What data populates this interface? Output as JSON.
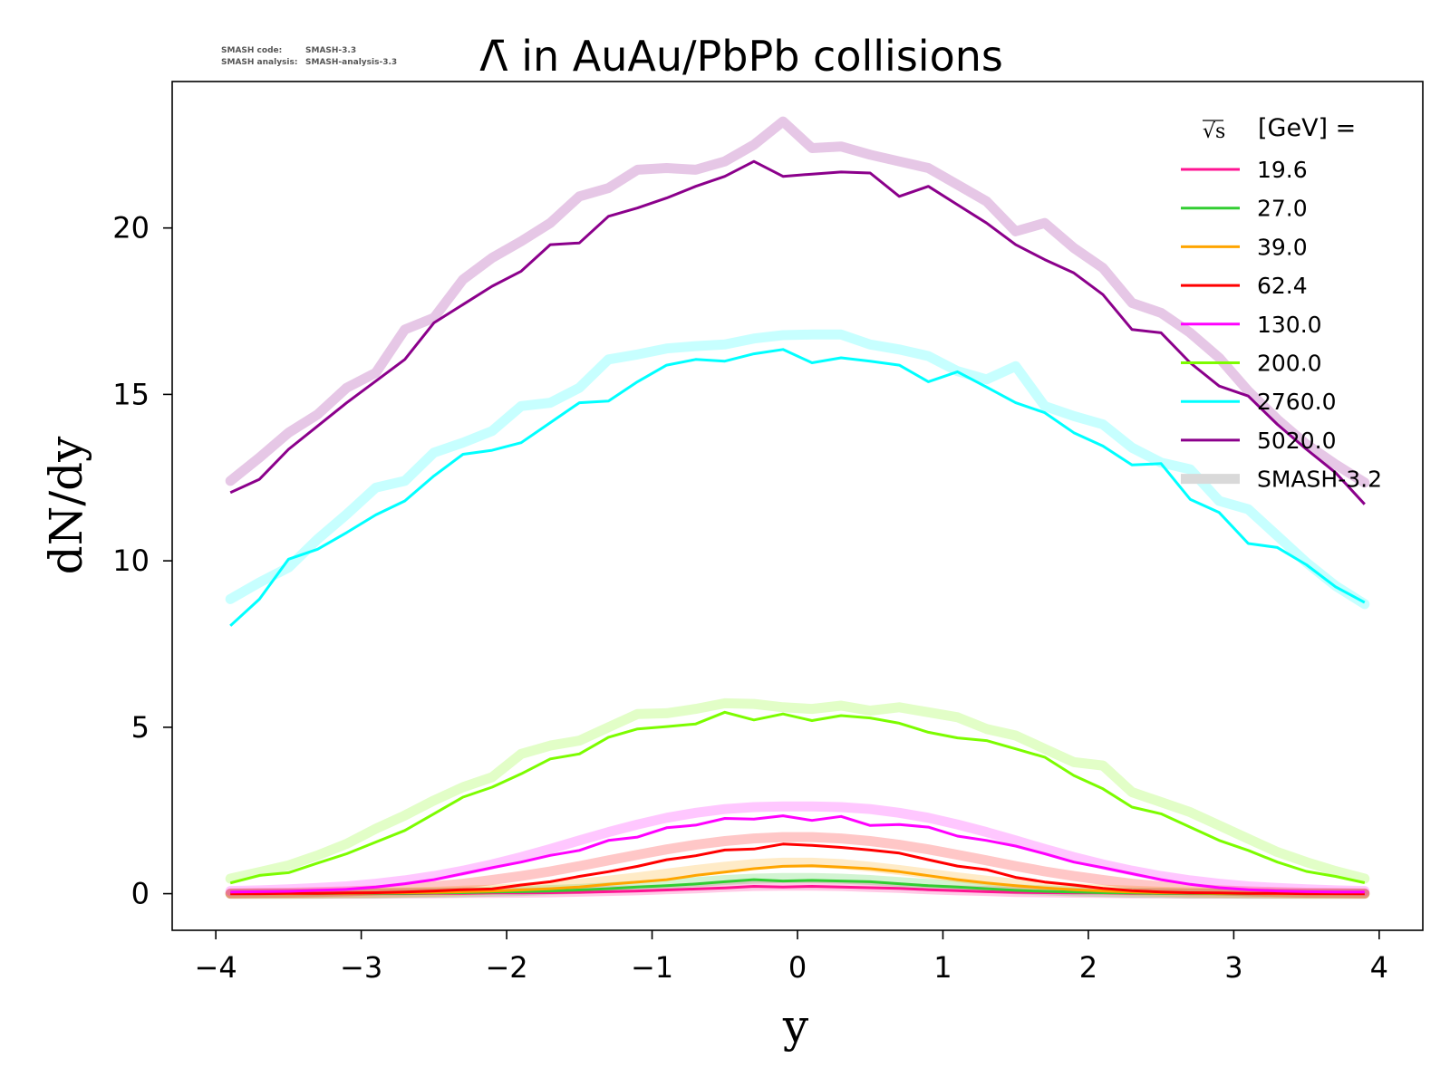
{
  "header": {
    "smash_code_label": "SMASH code:",
    "smash_code_value": "SMASH-3.3",
    "smash_analysis_label": "SMASH analysis:",
    "smash_analysis_value": "SMASH-analysis-3.3"
  },
  "chart_data": {
    "type": "line",
    "title": "Λ̄ in AuAu/PbPb collisions",
    "xlabel": "y",
    "ylabel": "dN/dy",
    "xlim": [
      -4.3,
      4.3
    ],
    "ylim": [
      -1.1,
      24.4
    ],
    "xticks": [
      -4,
      -3,
      -2,
      -1,
      0,
      1,
      2,
      3,
      4
    ],
    "xtick_labels": [
      "−4",
      "−3",
      "−2",
      "−1",
      "0",
      "1",
      "2",
      "3",
      "4"
    ],
    "yticks": [
      0,
      5,
      10,
      15,
      20
    ],
    "ytick_labels": [
      "0",
      "5",
      "10",
      "15",
      "20"
    ],
    "grid": false,
    "legend": {
      "position": "top-right",
      "title_symbol": "√s",
      "title_text": "[GeV] =",
      "reference_label": "SMASH-3.2",
      "reference_color": "#d9d9d9"
    },
    "x": [
      -3.9,
      -3.7,
      -3.5,
      -3.3,
      -3.1,
      -2.9,
      -2.7,
      -2.5,
      -2.3,
      -2.1,
      -1.9,
      -1.7,
      -1.5,
      -1.3,
      -1.1,
      -0.9,
      -0.7,
      -0.5,
      -0.3,
      -0.1,
      0.1,
      0.3,
      0.5,
      0.7,
      0.9,
      1.1,
      1.3,
      1.5,
      1.7,
      1.9,
      2.1,
      2.3,
      2.5,
      2.7,
      2.9,
      3.1,
      3.3,
      3.5,
      3.7,
      3.9
    ],
    "series": [
      {
        "name": "19.6",
        "color": "#ff1493",
        "values": [
          0.0,
          0.0,
          0.0,
          0.0,
          0.0,
          0.0,
          0.0,
          0.01,
          0.01,
          0.02,
          0.02,
          0.03,
          0.04,
          0.06,
          0.08,
          0.11,
          0.14,
          0.17,
          0.22,
          0.2,
          0.22,
          0.2,
          0.18,
          0.16,
          0.12,
          0.09,
          0.06,
          0.04,
          0.03,
          0.02,
          0.02,
          0.01,
          0.01,
          0.0,
          0.0,
          0.0,
          0.0,
          0.0,
          0.0,
          0.0
        ],
        "reference": [
          0.0,
          0.0,
          0.0,
          0.0,
          0.0,
          0.0,
          0.01,
          0.01,
          0.02,
          0.02,
          0.03,
          0.04,
          0.06,
          0.08,
          0.1,
          0.13,
          0.16,
          0.2,
          0.23,
          0.24,
          0.24,
          0.23,
          0.2,
          0.17,
          0.13,
          0.1,
          0.08,
          0.05,
          0.04,
          0.03,
          0.02,
          0.01,
          0.01,
          0.0,
          0.0,
          0.0,
          0.0,
          0.0,
          0.0,
          0.0
        ]
      },
      {
        "name": "27.0",
        "color": "#32cd32",
        "values": [
          0.0,
          0.0,
          0.0,
          0.0,
          0.01,
          0.01,
          0.01,
          0.02,
          0.03,
          0.05,
          0.06,
          0.08,
          0.11,
          0.15,
          0.2,
          0.24,
          0.29,
          0.36,
          0.42,
          0.38,
          0.4,
          0.38,
          0.36,
          0.3,
          0.24,
          0.2,
          0.15,
          0.1,
          0.07,
          0.05,
          0.03,
          0.02,
          0.01,
          0.01,
          0.0,
          0.0,
          0.0,
          0.0,
          0.0,
          0.0
        ],
        "reference": [
          0.0,
          0.0,
          0.0,
          0.0,
          0.01,
          0.01,
          0.02,
          0.03,
          0.04,
          0.06,
          0.08,
          0.11,
          0.14,
          0.19,
          0.24,
          0.3,
          0.35,
          0.41,
          0.45,
          0.47,
          0.47,
          0.45,
          0.41,
          0.35,
          0.29,
          0.24,
          0.18,
          0.13,
          0.1,
          0.07,
          0.05,
          0.03,
          0.02,
          0.01,
          0.01,
          0.0,
          0.0,
          0.0,
          0.0,
          0.0
        ]
      },
      {
        "name": "39.0",
        "color": "#ffa500",
        "values": [
          0.0,
          0.0,
          0.0,
          0.01,
          0.01,
          0.02,
          0.03,
          0.04,
          0.06,
          0.08,
          0.11,
          0.15,
          0.2,
          0.28,
          0.35,
          0.42,
          0.55,
          0.65,
          0.75,
          0.82,
          0.84,
          0.8,
          0.75,
          0.66,
          0.54,
          0.42,
          0.32,
          0.24,
          0.17,
          0.12,
          0.08,
          0.05,
          0.03,
          0.02,
          0.01,
          0.01,
          0.0,
          0.0,
          0.0,
          0.0
        ],
        "reference": [
          0.0,
          0.0,
          0.0,
          0.01,
          0.02,
          0.03,
          0.04,
          0.06,
          0.09,
          0.12,
          0.17,
          0.23,
          0.3,
          0.39,
          0.49,
          0.6,
          0.71,
          0.81,
          0.89,
          0.93,
          0.93,
          0.89,
          0.81,
          0.71,
          0.6,
          0.49,
          0.39,
          0.3,
          0.23,
          0.17,
          0.12,
          0.09,
          0.06,
          0.04,
          0.03,
          0.02,
          0.01,
          0.0,
          0.0,
          0.0
        ]
      },
      {
        "name": "62.4",
        "color": "#ff0000",
        "values": [
          0.0,
          0.0,
          0.01,
          0.01,
          0.02,
          0.03,
          0.05,
          0.08,
          0.12,
          0.14,
          0.26,
          0.36,
          0.52,
          0.66,
          0.82,
          1.02,
          1.14,
          1.31,
          1.34,
          1.49,
          1.45,
          1.39,
          1.31,
          1.22,
          1.02,
          0.83,
          0.72,
          0.49,
          0.35,
          0.26,
          0.16,
          0.09,
          0.05,
          0.03,
          0.02,
          0.01,
          0.01,
          0.0,
          0.0,
          0.0
        ],
        "reference": [
          0.01,
          0.02,
          0.03,
          0.05,
          0.07,
          0.1,
          0.15,
          0.22,
          0.3,
          0.41,
          0.53,
          0.67,
          0.83,
          1.0,
          1.17,
          1.33,
          1.47,
          1.58,
          1.66,
          1.7,
          1.7,
          1.66,
          1.58,
          1.47,
          1.33,
          1.17,
          1.0,
          0.83,
          0.67,
          0.53,
          0.41,
          0.3,
          0.22,
          0.15,
          0.1,
          0.07,
          0.05,
          0.03,
          0.02,
          0.01
        ]
      },
      {
        "name": "130.0",
        "color": "#ff00ff",
        "values": [
          0.05,
          0.06,
          0.07,
          0.1,
          0.13,
          0.2,
          0.3,
          0.42,
          0.6,
          0.78,
          0.95,
          1.15,
          1.3,
          1.6,
          1.7,
          1.98,
          2.06,
          2.26,
          2.24,
          2.34,
          2.2,
          2.32,
          2.05,
          2.08,
          2.0,
          1.73,
          1.6,
          1.43,
          1.2,
          0.95,
          0.78,
          0.6,
          0.42,
          0.28,
          0.18,
          0.12,
          0.08,
          0.06,
          0.05,
          0.05
        ],
        "reference": [
          0.08,
          0.1,
          0.13,
          0.17,
          0.22,
          0.3,
          0.4,
          0.53,
          0.69,
          0.88,
          1.1,
          1.34,
          1.6,
          1.85,
          2.08,
          2.28,
          2.43,
          2.54,
          2.6,
          2.62,
          2.62,
          2.6,
          2.54,
          2.43,
          2.28,
          2.08,
          1.85,
          1.6,
          1.34,
          1.1,
          0.88,
          0.69,
          0.53,
          0.4,
          0.3,
          0.22,
          0.17,
          0.13,
          0.1,
          0.08
        ]
      },
      {
        "name": "200.0",
        "color": "#7cfc00",
        "values": [
          0.32,
          0.55,
          0.63,
          0.92,
          1.2,
          1.55,
          1.9,
          2.4,
          2.9,
          3.2,
          3.6,
          4.05,
          4.2,
          4.7,
          4.95,
          5.02,
          5.1,
          5.45,
          5.22,
          5.4,
          5.2,
          5.35,
          5.28,
          5.12,
          4.85,
          4.68,
          4.6,
          4.35,
          4.1,
          3.55,
          3.15,
          2.6,
          2.4,
          2.0,
          1.6,
          1.3,
          0.95,
          0.67,
          0.52,
          0.33
        ],
        "reference": [
          0.45,
          0.65,
          0.85,
          1.15,
          1.5,
          1.95,
          2.35,
          2.8,
          3.2,
          3.5,
          4.2,
          4.45,
          4.6,
          5.0,
          5.4,
          5.42,
          5.55,
          5.72,
          5.7,
          5.6,
          5.55,
          5.65,
          5.5,
          5.6,
          5.45,
          5.3,
          4.95,
          4.75,
          4.35,
          3.95,
          3.85,
          3.05,
          2.75,
          2.45,
          2.05,
          1.65,
          1.25,
          0.95,
          0.68,
          0.45
        ]
      },
      {
        "name": "2760.0",
        "color": "#00ffff",
        "values": [
          8.05,
          8.85,
          10.05,
          10.35,
          10.85,
          11.38,
          11.8,
          12.55,
          13.2,
          13.32,
          13.55,
          14.15,
          14.75,
          14.8,
          15.38,
          15.88,
          16.05,
          16.0,
          16.22,
          16.35,
          15.95,
          16.1,
          16.0,
          15.88,
          15.38,
          15.68,
          15.22,
          14.75,
          14.45,
          13.85,
          13.45,
          12.88,
          12.92,
          11.85,
          11.45,
          10.52,
          10.4,
          9.88,
          9.22,
          8.75
        ],
        "reference": [
          8.85,
          9.35,
          9.8,
          10.65,
          11.4,
          12.2,
          12.4,
          13.25,
          13.55,
          13.9,
          14.65,
          14.75,
          15.2,
          16.05,
          16.2,
          16.38,
          16.45,
          16.5,
          16.68,
          16.78,
          16.8,
          16.8,
          16.5,
          16.35,
          16.15,
          15.7,
          15.45,
          15.85,
          14.65,
          14.35,
          14.1,
          13.4,
          12.95,
          12.75,
          11.8,
          11.55,
          10.75,
          9.95,
          9.25,
          8.7
        ]
      },
      {
        "name": "5020.0",
        "color": "#8b008b",
        "values": [
          12.05,
          12.45,
          13.35,
          14.05,
          14.75,
          15.4,
          16.05,
          17.15,
          17.7,
          18.25,
          18.7,
          19.5,
          19.55,
          20.35,
          20.6,
          20.9,
          21.25,
          21.55,
          22.0,
          21.55,
          21.62,
          21.68,
          21.65,
          20.95,
          21.25,
          20.7,
          20.15,
          19.5,
          19.05,
          18.65,
          18.0,
          16.95,
          16.85,
          15.95,
          15.25,
          14.95,
          14.1,
          13.35,
          12.65,
          11.7
        ],
        "reference": [
          12.4,
          13.1,
          13.85,
          14.4,
          15.2,
          15.65,
          16.95,
          17.3,
          18.45,
          19.1,
          19.6,
          20.15,
          20.95,
          21.2,
          21.75,
          21.8,
          21.75,
          22.0,
          22.5,
          23.2,
          22.4,
          22.45,
          22.2,
          22.0,
          21.8,
          21.3,
          20.8,
          19.9,
          20.15,
          19.4,
          18.8,
          17.75,
          17.45,
          16.85,
          16.1,
          15.1,
          14.25,
          13.5,
          12.9,
          12.35
        ]
      }
    ]
  }
}
